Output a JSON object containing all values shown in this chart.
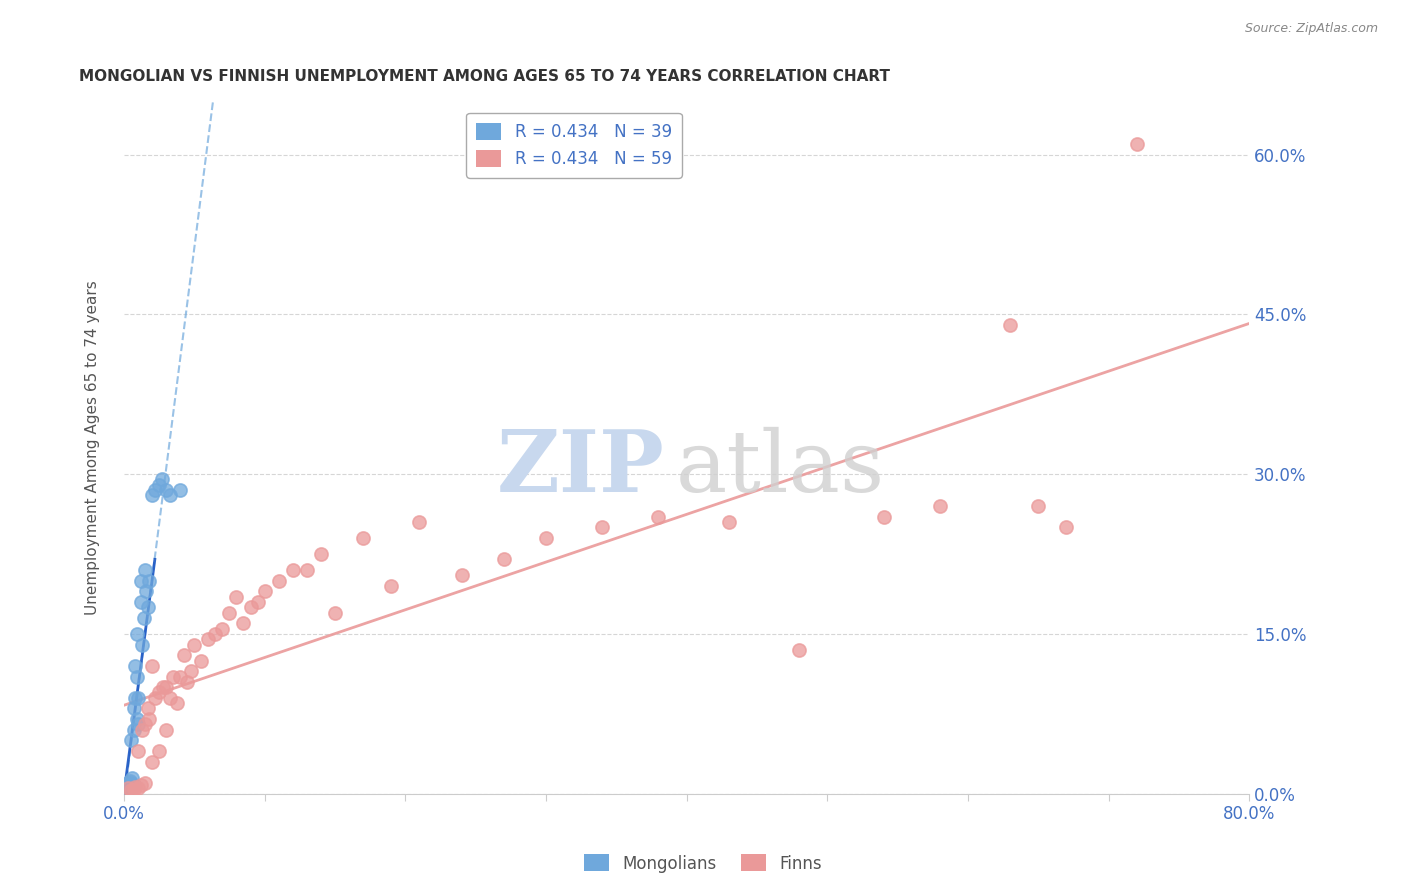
{
  "title": "MONGOLIAN VS FINNISH UNEMPLOYMENT AMONG AGES 65 TO 74 YEARS CORRELATION CHART",
  "source": "Source: ZipAtlas.com",
  "ylabel": "Unemployment Among Ages 65 to 74 years",
  "mongolian_color": "#6fa8dc",
  "finn_color": "#ea9999",
  "mongolian_r": 0.434,
  "mongolian_n": 39,
  "finn_r": 0.434,
  "finn_n": 59,
  "xlim": [
    0,
    0.8
  ],
  "ylim": [
    0,
    0.65
  ],
  "yticks": [
    0.0,
    0.15,
    0.3,
    0.45,
    0.6
  ],
  "ytick_labels": [
    "0.0%",
    "15.0%",
    "30.0%",
    "45.0%",
    "60.0%"
  ],
  "xticks": [
    0.0,
    0.1,
    0.2,
    0.3,
    0.4,
    0.5,
    0.6,
    0.7,
    0.8
  ],
  "xtick_labels": [
    "0.0%",
    "",
    "",
    "",
    "",
    "",
    "",
    "",
    "80.0%"
  ],
  "mongolians_x": [
    0.002,
    0.002,
    0.002,
    0.003,
    0.003,
    0.003,
    0.004,
    0.004,
    0.004,
    0.005,
    0.005,
    0.005,
    0.006,
    0.006,
    0.007,
    0.007,
    0.007,
    0.008,
    0.008,
    0.009,
    0.009,
    0.009,
    0.01,
    0.01,
    0.012,
    0.012,
    0.013,
    0.014,
    0.015,
    0.016,
    0.017,
    0.018,
    0.02,
    0.022,
    0.025,
    0.027,
    0.03,
    0.033,
    0.04
  ],
  "mongolians_y": [
    0.003,
    0.005,
    0.008,
    0.003,
    0.006,
    0.01,
    0.004,
    0.007,
    0.012,
    0.005,
    0.01,
    0.05,
    0.006,
    0.015,
    0.008,
    0.06,
    0.08,
    0.09,
    0.12,
    0.07,
    0.11,
    0.15,
    0.065,
    0.09,
    0.18,
    0.2,
    0.14,
    0.165,
    0.21,
    0.19,
    0.175,
    0.2,
    0.28,
    0.285,
    0.29,
    0.295,
    0.285,
    0.28,
    0.285
  ],
  "finns_x": [
    0.003,
    0.005,
    0.007,
    0.008,
    0.01,
    0.01,
    0.012,
    0.013,
    0.015,
    0.015,
    0.017,
    0.018,
    0.02,
    0.02,
    0.022,
    0.025,
    0.025,
    0.028,
    0.03,
    0.03,
    0.033,
    0.035,
    0.038,
    0.04,
    0.043,
    0.045,
    0.048,
    0.05,
    0.055,
    0.06,
    0.065,
    0.07,
    0.075,
    0.08,
    0.085,
    0.09,
    0.095,
    0.1,
    0.11,
    0.12,
    0.13,
    0.14,
    0.15,
    0.17,
    0.19,
    0.21,
    0.24,
    0.27,
    0.3,
    0.34,
    0.38,
    0.43,
    0.48,
    0.54,
    0.58,
    0.63,
    0.67,
    0.72,
    0.65
  ],
  "finns_y": [
    0.005,
    0.003,
    0.004,
    0.006,
    0.005,
    0.04,
    0.008,
    0.06,
    0.01,
    0.065,
    0.08,
    0.07,
    0.03,
    0.12,
    0.09,
    0.04,
    0.095,
    0.1,
    0.06,
    0.1,
    0.09,
    0.11,
    0.085,
    0.11,
    0.13,
    0.105,
    0.115,
    0.14,
    0.125,
    0.145,
    0.15,
    0.155,
    0.17,
    0.185,
    0.16,
    0.175,
    0.18,
    0.19,
    0.2,
    0.21,
    0.21,
    0.225,
    0.17,
    0.24,
    0.195,
    0.255,
    0.205,
    0.22,
    0.24,
    0.25,
    0.26,
    0.255,
    0.135,
    0.26,
    0.27,
    0.44,
    0.25,
    0.61,
    0.27
  ],
  "legend_mongolian_label": "R = 0.434   N = 39",
  "legend_finn_label": "R = 0.434   N = 59",
  "axis_color": "#4472c4",
  "tick_color": "#4472c4",
  "watermark_zip_color": "#c8d8ee",
  "watermark_atlas_color": "#d0d0d0"
}
